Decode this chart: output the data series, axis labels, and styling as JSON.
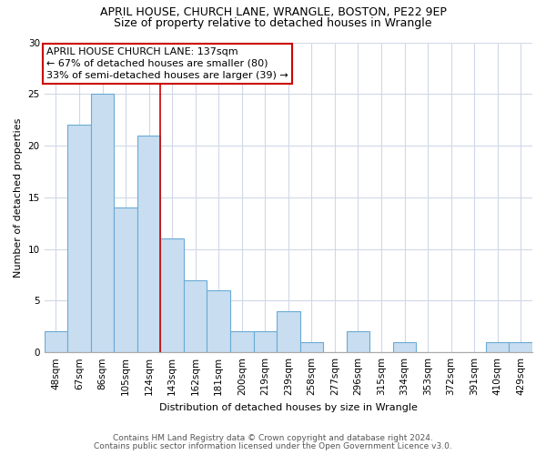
{
  "title1": "APRIL HOUSE, CHURCH LANE, WRANGLE, BOSTON, PE22 9EP",
  "title2": "Size of property relative to detached houses in Wrangle",
  "xlabel": "Distribution of detached houses by size in Wrangle",
  "ylabel": "Number of detached properties",
  "bin_labels": [
    "48sqm",
    "67sqm",
    "86sqm",
    "105sqm",
    "124sqm",
    "143sqm",
    "162sqm",
    "181sqm",
    "200sqm",
    "219sqm",
    "239sqm",
    "258sqm",
    "277sqm",
    "296sqm",
    "315sqm",
    "334sqm",
    "353sqm",
    "372sqm",
    "391sqm",
    "410sqm",
    "429sqm"
  ],
  "bar_heights": [
    2,
    22,
    25,
    14,
    21,
    11,
    7,
    6,
    2,
    2,
    4,
    1,
    0,
    2,
    0,
    1,
    0,
    0,
    0,
    1,
    1
  ],
  "bar_color": "#c8ddf0",
  "bar_edge_color": "#6aaad4",
  "annotation_line0": "APRIL HOUSE CHURCH LANE: 137sqm",
  "annotation_line1": "← 67% of detached houses are smaller (80)",
  "annotation_line2": "33% of semi-detached houses are larger (39) →",
  "ref_line_x": 4.5,
  "ylim": [
    0,
    30
  ],
  "yticks": [
    0,
    5,
    10,
    15,
    20,
    25,
    30
  ],
  "footnote1": "Contains HM Land Registry data © Crown copyright and database right 2024.",
  "footnote2": "Contains public sector information licensed under the Open Government Licence v3.0.",
  "bg_color": "#ffffff",
  "grid_color": "#d0d8e8",
  "title_fontsize": 9,
  "subtitle_fontsize": 9,
  "axis_label_fontsize": 8,
  "tick_fontsize": 7.5,
  "annot_fontsize": 8,
  "footnote_fontsize": 6.5
}
